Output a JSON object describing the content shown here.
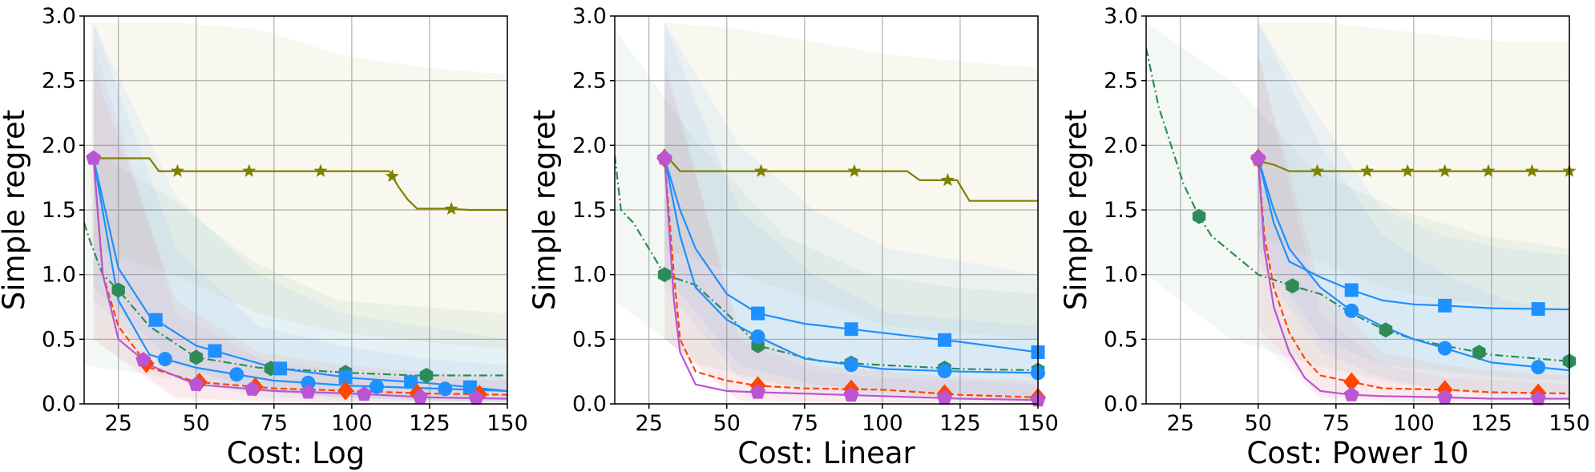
{
  "colors": {
    "olive": "#808000",
    "green": "#2e8b57",
    "blue": "#1e90ff",
    "red": "#ff4500",
    "purple": "#ba55d3"
  },
  "chart_data": [
    {
      "type": "line",
      "title": "",
      "xlabel": "Cost: Log",
      "ylabel": "Simple regret",
      "xlim": [
        14,
        150
      ],
      "ylim": [
        0,
        3
      ],
      "xticks": [
        25,
        50,
        75,
        100,
        125,
        150
      ],
      "yticks": [
        0.0,
        0.5,
        1.0,
        1.5,
        2.0,
        2.5,
        3.0
      ],
      "grid": true,
      "series": [
        {
          "color": "olive",
          "style": "solid",
          "marker": "star",
          "x": [
            16,
            35,
            38,
            112,
            115,
            118,
            121,
            130,
            138,
            150
          ],
          "y": [
            1.9,
            1.9,
            1.8,
            1.8,
            1.68,
            1.58,
            1.51,
            1.51,
            1.5,
            1.5
          ],
          "markers_x": [
            17,
            44,
            67,
            90,
            113,
            132
          ],
          "band_low": [
            1.2,
            1.0,
            0.7,
            0.55,
            0.48,
            0.42
          ],
          "band_high": [
            2.95,
            2.95,
            2.9,
            2.7,
            2.6,
            2.55
          ]
        },
        {
          "color": "green",
          "style": "dashdot",
          "marker": "hexagon",
          "x": [
            14,
            16,
            20,
            25,
            35,
            50,
            70,
            100,
            120,
            150
          ],
          "y": [
            1.4,
            1.25,
            1.0,
            0.88,
            0.6,
            0.36,
            0.28,
            0.24,
            0.22,
            0.22
          ],
          "markers_x": [
            25,
            50,
            74,
            98,
            124
          ],
          "band_low": [
            0.3,
            0.2,
            0.1,
            0.05,
            0.03,
            0.02
          ],
          "band_high": [
            2.0,
            1.6,
            1.1,
            0.8,
            0.75,
            0.7
          ]
        },
        {
          "color": "blue",
          "style": "solid",
          "marker": "square",
          "x": [
            17,
            25,
            35,
            50,
            75,
            100,
            125,
            150
          ],
          "y": [
            1.9,
            1.05,
            0.68,
            0.45,
            0.28,
            0.2,
            0.16,
            0.1
          ],
          "markers_x": [
            37,
            56,
            77,
            98,
            119,
            138
          ],
          "band_low": [
            0.9,
            0.3,
            0.1,
            0.05,
            0.03,
            0.02
          ],
          "band_high": [
            2.95,
            1.6,
            1.0,
            0.7,
            0.6,
            0.5
          ]
        },
        {
          "color": "blue",
          "style": "solid",
          "marker": "circle",
          "x": [
            17,
            25,
            35,
            50,
            75,
            100,
            125,
            150
          ],
          "y": [
            1.9,
            0.8,
            0.38,
            0.28,
            0.18,
            0.14,
            0.12,
            0.1
          ],
          "markers_x": [
            40,
            63,
            86,
            108,
            130
          ],
          "band_low": [
            0.8,
            0.2,
            0.05,
            0.03,
            0.02,
            0.01
          ],
          "band_high": [
            2.95,
            1.2,
            0.6,
            0.45,
            0.35,
            0.3
          ]
        },
        {
          "color": "red",
          "style": "dashed",
          "marker": "diamond",
          "x": [
            17,
            20,
            25,
            35,
            50,
            75,
            100,
            125,
            150
          ],
          "y": [
            1.9,
            1.0,
            0.6,
            0.28,
            0.17,
            0.12,
            0.1,
            0.08,
            0.07
          ],
          "markers_x": [
            34,
            51,
            69,
            98,
            121,
            141
          ],
          "band_low": [
            0.5,
            0.05,
            0.02,
            0.01,
            0.01,
            0.01
          ],
          "band_high": [
            2.6,
            0.8,
            0.4,
            0.3,
            0.25,
            0.2
          ]
        },
        {
          "color": "purple",
          "style": "solid",
          "marker": "pentagon",
          "x": [
            17,
            20,
            25,
            35,
            50,
            75,
            100,
            125,
            150
          ],
          "y": [
            1.9,
            1.0,
            0.5,
            0.3,
            0.15,
            0.1,
            0.08,
            0.05,
            0.04
          ],
          "markers_x": [
            17,
            33,
            50,
            68,
            86,
            104,
            122,
            140
          ],
          "band_low": [
            0.5,
            0.03,
            0.02,
            0.01,
            0.01,
            0.01
          ],
          "band_high": [
            2.8,
            0.7,
            0.35,
            0.25,
            0.2,
            0.18
          ]
        }
      ]
    },
    {
      "type": "line",
      "title": "",
      "xlabel": "Cost: Linear",
      "ylabel": "Simple regret",
      "xlim": [
        14,
        150
      ],
      "ylim": [
        0,
        3
      ],
      "xticks": [
        25,
        50,
        75,
        100,
        125,
        150
      ],
      "yticks": [
        0.0,
        0.5,
        1.0,
        1.5,
        2.0,
        2.5,
        3.0
      ],
      "grid": true,
      "series": [
        {
          "color": "olive",
          "style": "solid",
          "marker": "star",
          "x": [
            30,
            32,
            35,
            108,
            112,
            124,
            128,
            150
          ],
          "y": [
            1.9,
            1.88,
            1.8,
            1.8,
            1.73,
            1.73,
            1.57,
            1.57
          ],
          "markers_x": [
            30,
            61,
            91,
            121
          ],
          "band_low": [
            1.2,
            1.0,
            0.8,
            0.6,
            0.55,
            0.5
          ],
          "band_high": [
            2.95,
            2.9,
            2.8,
            2.7,
            2.65,
            2.6
          ]
        },
        {
          "color": "green",
          "style": "dashdot",
          "marker": "hexagon",
          "x": [
            14,
            16,
            20,
            25,
            30,
            40,
            50,
            60,
            80,
            100,
            125,
            150
          ],
          "y": [
            1.92,
            1.5,
            1.4,
            1.2,
            1.0,
            0.92,
            0.7,
            0.45,
            0.33,
            0.3,
            0.27,
            0.26
          ],
          "markers_x": [
            30,
            60,
            90,
            120,
            150
          ],
          "band_low": [
            0.8,
            0.3,
            0.15,
            0.08,
            0.05,
            0.04
          ],
          "band_high": [
            2.9,
            2.0,
            1.3,
            1.0,
            0.9,
            0.85
          ]
        },
        {
          "color": "blue",
          "style": "solid",
          "marker": "square",
          "x": [
            30,
            35,
            40,
            50,
            60,
            75,
            100,
            125,
            150
          ],
          "y": [
            1.9,
            1.5,
            1.2,
            0.85,
            0.7,
            0.62,
            0.55,
            0.48,
            0.4
          ],
          "markers_x": [
            60,
            90,
            120,
            150
          ],
          "band_low": [
            1.0,
            0.3,
            0.15,
            0.1,
            0.08,
            0.06
          ],
          "band_high": [
            2.95,
            2.0,
            1.5,
            1.2,
            1.1,
            1.0
          ]
        },
        {
          "color": "blue",
          "style": "solid",
          "marker": "circle",
          "x": [
            30,
            35,
            40,
            50,
            60,
            75,
            100,
            125,
            150
          ],
          "y": [
            1.9,
            1.3,
            0.9,
            0.65,
            0.52,
            0.35,
            0.27,
            0.25,
            0.24
          ],
          "markers_x": [
            60,
            90,
            120,
            150
          ],
          "band_low": [
            0.9,
            0.2,
            0.1,
            0.05,
            0.04,
            0.03
          ],
          "band_high": [
            2.95,
            1.5,
            1.0,
            0.7,
            0.65,
            0.6
          ]
        },
        {
          "color": "red",
          "style": "dashed",
          "marker": "diamond",
          "x": [
            30,
            33,
            35,
            40,
            50,
            60,
            75,
            100,
            125,
            150
          ],
          "y": [
            1.9,
            1.0,
            0.5,
            0.25,
            0.18,
            0.14,
            0.12,
            0.11,
            0.07,
            0.05
          ],
          "markers_x": [
            30,
            60,
            90,
            120,
            150
          ],
          "band_low": [
            0.5,
            0.03,
            0.02,
            0.01,
            0.01,
            0.01
          ],
          "band_high": [
            2.6,
            0.6,
            0.3,
            0.25,
            0.2,
            0.18
          ]
        },
        {
          "color": "purple",
          "style": "solid",
          "marker": "pentagon",
          "x": [
            30,
            33,
            35,
            40,
            50,
            60,
            75,
            100,
            125,
            150
          ],
          "y": [
            1.9,
            0.8,
            0.4,
            0.15,
            0.1,
            0.09,
            0.08,
            0.06,
            0.04,
            0.03
          ],
          "markers_x": [
            30,
            60,
            90,
            120,
            150
          ],
          "band_low": [
            0.5,
            0.02,
            0.01,
            0.01,
            0.01,
            0.01
          ],
          "band_high": [
            2.7,
            0.5,
            0.25,
            0.2,
            0.18,
            0.15
          ]
        }
      ]
    },
    {
      "type": "line",
      "title": "",
      "xlabel": "Cost: Power 10",
      "ylabel": "Simple regret",
      "xlim": [
        14,
        150
      ],
      "ylim": [
        0,
        3
      ],
      "xticks": [
        25,
        50,
        75,
        100,
        125,
        150
      ],
      "yticks": [
        0.0,
        0.5,
        1.0,
        1.5,
        2.0,
        2.5,
        3.0
      ],
      "grid": true,
      "series": [
        {
          "color": "olive",
          "style": "solid",
          "marker": "star",
          "x": [
            50,
            55,
            60,
            150
          ],
          "y": [
            1.88,
            1.85,
            1.8,
            1.8
          ],
          "markers_x": [
            50,
            69,
            85,
            98,
            110,
            124,
            138,
            150
          ],
          "band_low": [
            1.3,
            1.1,
            0.9,
            0.8,
            0.75,
            0.7
          ],
          "band_high": [
            2.95,
            2.95,
            2.9,
            2.85,
            2.8,
            2.8
          ]
        },
        {
          "color": "green",
          "style": "dashdot",
          "marker": "hexagon",
          "x": [
            14,
            18,
            22,
            26,
            31,
            35,
            40,
            45,
            50,
            55,
            60,
            70,
            80,
            90,
            100,
            110,
            125,
            150
          ],
          "y": [
            2.75,
            2.3,
            2.0,
            1.7,
            1.45,
            1.3,
            1.2,
            1.1,
            1.0,
            0.96,
            0.92,
            0.85,
            0.7,
            0.58,
            0.5,
            0.45,
            0.38,
            0.33
          ],
          "markers_x": [
            31,
            61,
            91,
            121,
            150
          ],
          "band_low": [
            1.0,
            0.5,
            0.3,
            0.15,
            0.1,
            0.08
          ],
          "band_high": [
            2.95,
            2.5,
            1.8,
            1.5,
            1.3,
            1.2
          ]
        },
        {
          "color": "blue",
          "style": "solid",
          "marker": "square",
          "x": [
            50,
            55,
            60,
            70,
            80,
            90,
            100,
            110,
            125,
            150
          ],
          "y": [
            1.9,
            1.4,
            1.1,
            0.98,
            0.88,
            0.8,
            0.77,
            0.76,
            0.74,
            0.73
          ],
          "markers_x": [
            80,
            110,
            140
          ],
          "band_low": [
            1.2,
            0.5,
            0.3,
            0.25,
            0.2,
            0.18
          ],
          "band_high": [
            2.95,
            2.2,
            1.5,
            1.3,
            1.2,
            1.15
          ]
        },
        {
          "color": "blue",
          "style": "solid",
          "marker": "circle",
          "x": [
            50,
            55,
            60,
            70,
            80,
            90,
            100,
            110,
            125,
            150
          ],
          "y": [
            1.9,
            1.5,
            1.2,
            0.9,
            0.72,
            0.6,
            0.5,
            0.43,
            0.32,
            0.26
          ],
          "markers_x": [
            80,
            110,
            140
          ],
          "band_low": [
            1.1,
            0.4,
            0.2,
            0.1,
            0.06,
            0.05
          ],
          "band_high": [
            2.95,
            2.0,
            1.3,
            1.0,
            0.8,
            0.7
          ]
        },
        {
          "color": "red",
          "style": "dashed",
          "marker": "diamond",
          "x": [
            50,
            52,
            55,
            60,
            65,
            70,
            80,
            90,
            110,
            125,
            150
          ],
          "y": [
            1.9,
            1.3,
            0.9,
            0.55,
            0.35,
            0.22,
            0.17,
            0.12,
            0.11,
            0.09,
            0.08
          ],
          "markers_x": [
            50,
            80,
            110,
            140
          ],
          "band_low": [
            0.6,
            0.05,
            0.03,
            0.02,
            0.02,
            0.02
          ],
          "band_high": [
            2.7,
            0.9,
            0.4,
            0.3,
            0.25,
            0.22
          ]
        },
        {
          "color": "purple",
          "style": "solid",
          "marker": "pentagon",
          "x": [
            50,
            52,
            55,
            60,
            65,
            70,
            80,
            90,
            110,
            125,
            150
          ],
          "y": [
            1.9,
            1.2,
            0.75,
            0.4,
            0.2,
            0.1,
            0.07,
            0.06,
            0.05,
            0.04,
            0.04
          ],
          "markers_x": [
            50,
            80,
            110,
            140
          ],
          "band_low": [
            0.5,
            0.03,
            0.02,
            0.01,
            0.01,
            0.01
          ],
          "band_high": [
            2.7,
            0.7,
            0.3,
            0.2,
            0.18,
            0.15
          ]
        }
      ]
    }
  ]
}
